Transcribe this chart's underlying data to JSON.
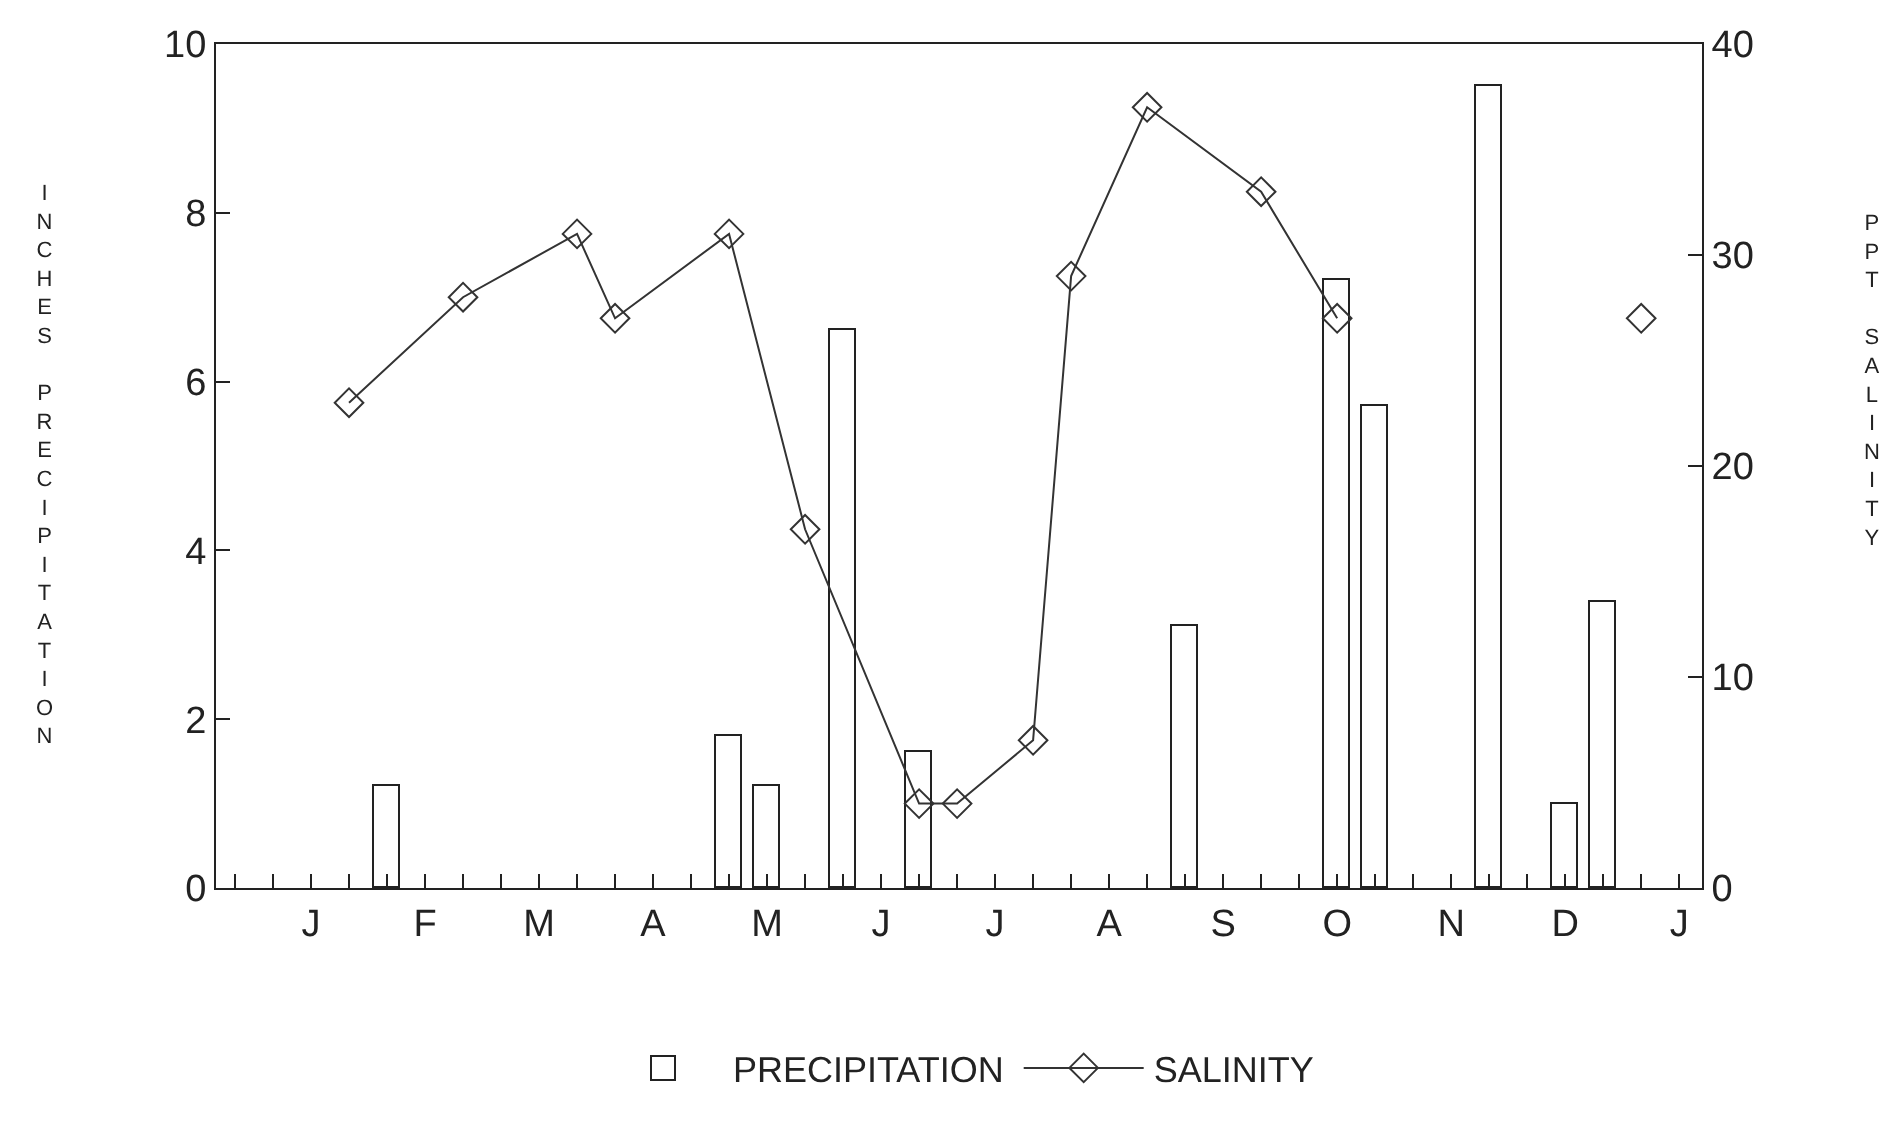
{
  "chart_data": {
    "type": "bar",
    "ylabel": "INCHES PRECIPITATION",
    "y2label": "PPT SALINITY",
    "categories": [
      null,
      null,
      "J",
      null,
      null,
      "F",
      null,
      null,
      "M",
      null,
      null,
      "A",
      null,
      null,
      "M",
      null,
      null,
      "J",
      null,
      null,
      "J",
      null,
      null,
      "A",
      null,
      null,
      "S",
      null,
      null,
      "O",
      null,
      null,
      "N",
      null,
      null,
      "D",
      null,
      null,
      "J"
    ],
    "ylim": [
      0,
      10
    ],
    "yticks": [
      0,
      2,
      4,
      6,
      8,
      10
    ],
    "y2lim": [
      0,
      40
    ],
    "y2ticks": [
      0,
      10,
      20,
      30,
      40
    ],
    "series": [
      {
        "name": "PRECIPITATION",
        "color": "#ffffff",
        "values": [
          null,
          null,
          null,
          null,
          1.2,
          null,
          null,
          null,
          null,
          null,
          null,
          null,
          null,
          1.8,
          1.2,
          null,
          6.6,
          null,
          1.6,
          null,
          null,
          null,
          null,
          null,
          null,
          3.1,
          null,
          null,
          null,
          7.2,
          5.7,
          null,
          null,
          9.5,
          null,
          1.0,
          3.4,
          null,
          null
        ]
      },
      {
        "name": "SALINITY",
        "type": "line",
        "axis": "y2",
        "color": "#333333",
        "marker": "diamond",
        "line_style": "solid",
        "values": [
          null,
          null,
          null,
          23,
          null,
          null,
          28,
          null,
          null,
          31,
          27,
          null,
          null,
          31,
          null,
          17,
          null,
          null,
          4,
          4,
          null,
          7,
          29,
          null,
          37,
          null,
          null,
          33,
          null,
          27,
          null,
          null,
          null,
          null,
          null,
          null,
          null,
          null,
          null
        ]
      },
      {
        "type": "line",
        "axis": "y2",
        "color": "#333333",
        "marker": "diamond",
        "line_style": "solid",
        "values": [
          null,
          null,
          null,
          null,
          null,
          null,
          null,
          null,
          null,
          null,
          null,
          null,
          null,
          null,
          null,
          null,
          null,
          null,
          null,
          null,
          null,
          null,
          null,
          null,
          null,
          null,
          null,
          null,
          null,
          null,
          null,
          null,
          null,
          null,
          null,
          null,
          null,
          27,
          null
        ]
      }
    ],
    "legend": "bottom",
    "grid": false
  }
}
